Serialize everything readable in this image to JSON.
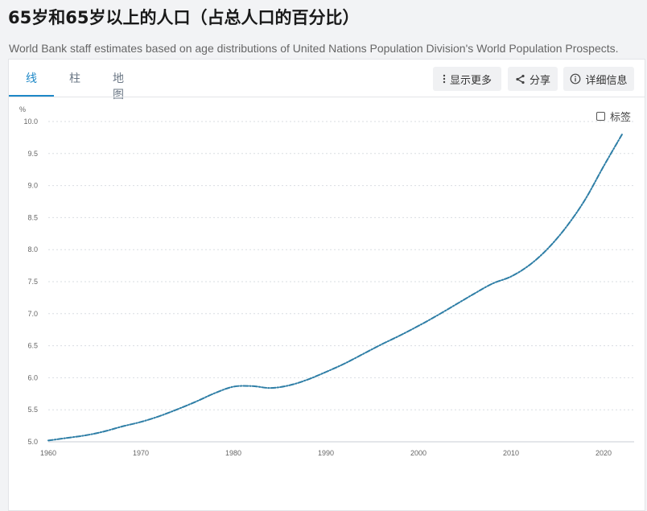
{
  "header": {
    "title": "65岁和65岁以上的人口（占总人口的百分比）",
    "subtitle": "World Bank staff estimates based on age distributions of United Nations Population Division's World Population Prospects."
  },
  "tabs": [
    {
      "label": "线",
      "active": true
    },
    {
      "label": "柱",
      "active": false
    },
    {
      "label": "地图",
      "active": false
    }
  ],
  "toolbar": {
    "more_label": "显示更多",
    "share_label": "分享",
    "details_label": "详细信息"
  },
  "legend_toggle": {
    "label": "标签",
    "checked": false
  },
  "icons": {
    "more": "vertical-dots-icon",
    "share": "share-icon",
    "details": "info-circle-icon"
  },
  "colors": {
    "line": "#2e7ea6",
    "accent": "#1e88c7",
    "grid": "#d9dde2"
  },
  "chart_data": {
    "type": "line",
    "title": "",
    "ylabel": "%",
    "xlabel": "",
    "xlim": [
      1960,
      2022
    ],
    "ylim": [
      5.0,
      10.0
    ],
    "x_ticks": [
      1960,
      1970,
      1980,
      1990,
      2000,
      2010,
      2020
    ],
    "y_ticks": [
      5.0,
      5.5,
      6.0,
      6.5,
      7.0,
      7.5,
      8.0,
      8.5,
      9.0,
      9.5,
      10.0
    ],
    "y_tick_labels": [
      "5.0",
      "5.5",
      "6.0",
      "6.5",
      "7.0",
      "7.5",
      "8.0",
      "8.5",
      "9.0",
      "9.5",
      "10.0"
    ],
    "grid": "horizontal dashed",
    "series": [
      {
        "x": [
          1960,
          1962,
          1964,
          1966,
          1968,
          1970,
          1972,
          1974,
          1976,
          1978,
          1980,
          1982,
          1984,
          1986,
          1988,
          1990,
          1992,
          1994,
          1996,
          1998,
          2000,
          2002,
          2004,
          2006,
          2008,
          2010,
          2012,
          2014,
          2016,
          2018,
          2020,
          2022
        ],
        "values": [
          5.02,
          5.06,
          5.1,
          5.16,
          5.24,
          5.31,
          5.4,
          5.51,
          5.63,
          5.76,
          5.86,
          5.87,
          5.84,
          5.88,
          5.97,
          6.09,
          6.22,
          6.37,
          6.52,
          6.66,
          6.81,
          6.97,
          7.14,
          7.31,
          7.47,
          7.58,
          7.76,
          8.02,
          8.36,
          8.78,
          9.3,
          9.8
        ]
      }
    ]
  }
}
